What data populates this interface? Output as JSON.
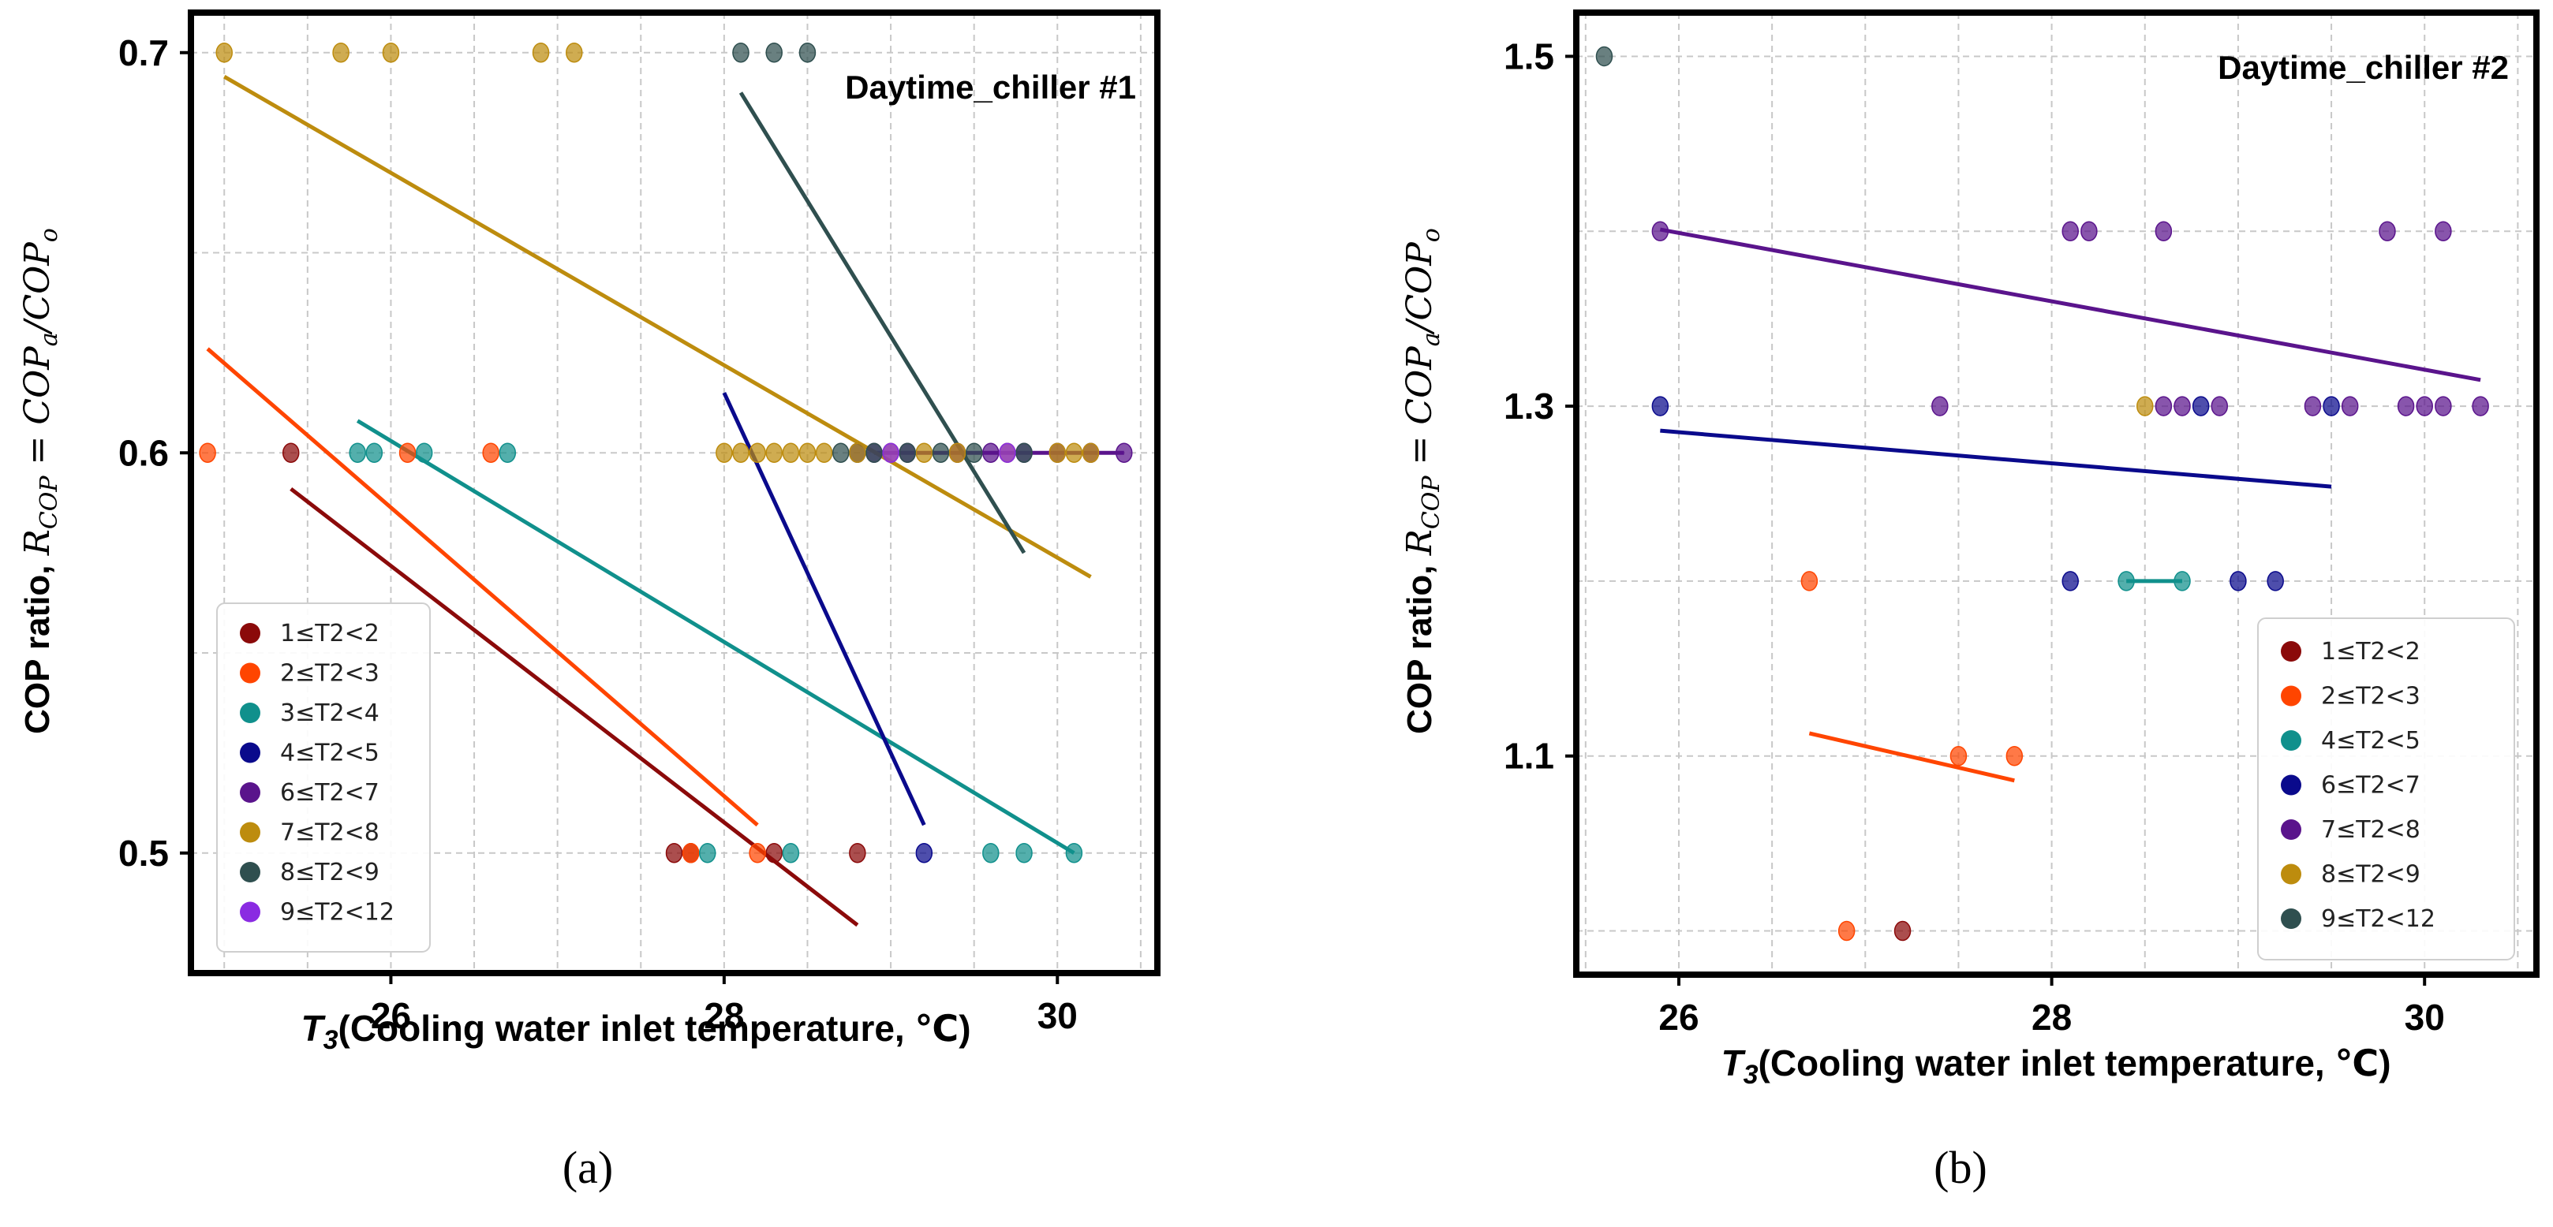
{
  "chart_data": [
    {
      "type": "scatter",
      "panel_label": "(a)",
      "annotation": "Daytime_chiller #1",
      "xlabel_sym": "T",
      "xlabel_sub": "3",
      "xlabel_rest": "(Cooling water inlet temperature, ℃)",
      "ylabel_text": "COP ratio, ",
      "ylabel_math": "R",
      "ylabel_math_sub": "COP",
      "ylabel_eq": " = COP",
      "ylabel_eq_sub": "a",
      "ylabel_slash": "/COP",
      "ylabel_slash_sub": "o",
      "xlim": [
        24.8,
        30.6
      ],
      "ylim": [
        0.47,
        0.71
      ],
      "xticks": [
        26,
        28,
        30
      ],
      "xtick_labels": [
        "26",
        "28",
        "30"
      ],
      "yticks": [
        0.5,
        0.6,
        0.7
      ],
      "ytick_labels": [
        "0.5",
        "0.6",
        "0.7"
      ],
      "xgrid": [
        25,
        25.5,
        26,
        26.5,
        27,
        27.5,
        28,
        28.5,
        29,
        29.5,
        30,
        30.5
      ],
      "ygrid": [
        0.5,
        0.55,
        0.6,
        0.65,
        0.7
      ],
      "grid": true,
      "legend_position": "lower-left",
      "series": [
        {
          "name": "1≤T2<2",
          "color": "#8b0a0a",
          "points": [
            [
              25.4,
              0.6
            ],
            [
              27.7,
              0.5
            ],
            [
              27.8,
              0.5
            ],
            [
              28.3,
              0.5
            ],
            [
              28.8,
              0.5
            ]
          ],
          "trend": [
            [
              25.4,
              0.591
            ],
            [
              28.8,
              0.482
            ]
          ]
        },
        {
          "name": "2≤T2<3",
          "color": "#ff4500",
          "points": [
            [
              24.9,
              0.6
            ],
            [
              26.1,
              0.6
            ],
            [
              26.6,
              0.6
            ],
            [
              27.8,
              0.5
            ],
            [
              28.2,
              0.5
            ]
          ],
          "trend": [
            [
              24.9,
              0.626
            ],
            [
              28.2,
              0.507
            ]
          ]
        },
        {
          "name": "3≤T2<4",
          "color": "#10908c",
          "points": [
            [
              25.8,
              0.6
            ],
            [
              25.9,
              0.6
            ],
            [
              26.2,
              0.6
            ],
            [
              26.7,
              0.6
            ],
            [
              27.9,
              0.5
            ],
            [
              28.4,
              0.5
            ],
            [
              29.6,
              0.5
            ],
            [
              29.8,
              0.5
            ],
            [
              30.1,
              0.5
            ]
          ],
          "trend": [
            [
              25.8,
              0.608
            ],
            [
              30.1,
              0.5
            ]
          ]
        },
        {
          "name": "4≤T2<5",
          "color": "#0a0a8c",
          "points": [
            [
              28.8,
              0.6
            ],
            [
              29.2,
              0.5
            ]
          ],
          "trend": [
            [
              28.0,
              0.615
            ],
            [
              29.2,
              0.507
            ]
          ]
        },
        {
          "name": "6≤T2<7",
          "color": "#5a148c",
          "points": [
            [
              28.9,
              0.6
            ],
            [
              29.1,
              0.6
            ],
            [
              29.4,
              0.6
            ],
            [
              29.6,
              0.6
            ],
            [
              29.8,
              0.6
            ],
            [
              30.0,
              0.6
            ],
            [
              30.2,
              0.6
            ],
            [
              30.4,
              0.6
            ]
          ],
          "trend": [
            [
              28.9,
              0.6
            ],
            [
              30.4,
              0.6
            ]
          ]
        },
        {
          "name": "7≤T2<8",
          "color": "#bd8c0e",
          "points": [
            [
              25.0,
              0.7
            ],
            [
              25.7,
              0.7
            ],
            [
              26.0,
              0.7
            ],
            [
              26.9,
              0.7
            ],
            [
              27.1,
              0.7
            ],
            [
              28.0,
              0.6
            ],
            [
              28.1,
              0.6
            ],
            [
              28.2,
              0.6
            ],
            [
              28.3,
              0.6
            ],
            [
              28.4,
              0.6
            ],
            [
              28.5,
              0.6
            ],
            [
              28.6,
              0.6
            ],
            [
              28.8,
              0.6
            ],
            [
              29.0,
              0.6
            ],
            [
              29.2,
              0.6
            ],
            [
              29.4,
              0.6
            ],
            [
              29.7,
              0.6
            ],
            [
              30.0,
              0.6
            ],
            [
              30.1,
              0.6
            ],
            [
              30.2,
              0.6
            ]
          ],
          "trend": [
            [
              25.0,
              0.694
            ],
            [
              30.2,
              0.569
            ]
          ]
        },
        {
          "name": "8≤T2<9",
          "color": "#2f4f4f",
          "points": [
            [
              28.1,
              0.7
            ],
            [
              28.3,
              0.7
            ],
            [
              28.5,
              0.7
            ],
            [
              28.7,
              0.6
            ],
            [
              28.9,
              0.6
            ],
            [
              29.1,
              0.6
            ],
            [
              29.3,
              0.6
            ],
            [
              29.5,
              0.6
            ],
            [
              29.8,
              0.6
            ]
          ],
          "trend": [
            [
              28.1,
              0.69
            ],
            [
              29.8,
              0.575
            ]
          ]
        },
        {
          "name": "9≤T2<12",
          "color": "#8a2be2",
          "points": [
            [
              29.0,
              0.6
            ],
            [
              29.7,
              0.6
            ]
          ],
          "trend": []
        }
      ]
    },
    {
      "type": "scatter",
      "panel_label": "(b)",
      "annotation": "Daytime_chiller #2",
      "xlabel_sym": "T",
      "xlabel_sub": "3",
      "xlabel_rest": "(Cooling water inlet temperature, ℃)",
      "ylabel_text": "COP ratio, ",
      "ylabel_math": "R",
      "ylabel_math_sub": "COP",
      "ylabel_eq": " = COP",
      "ylabel_eq_sub": "a",
      "ylabel_slash": "/COP",
      "ylabel_slash_sub": "o",
      "xlim": [
        25.45,
        30.6
      ],
      "ylim": [
        0.975,
        1.525
      ],
      "xticks": [
        26,
        28,
        30
      ],
      "xtick_labels": [
        "26",
        "28",
        "30"
      ],
      "yticks": [
        1.1,
        1.3,
        1.5
      ],
      "ytick_labels": [
        "1.1",
        "1.3",
        "1.5"
      ],
      "xgrid": [
        25.5,
        26,
        26.5,
        27,
        27.5,
        28,
        28.5,
        29,
        29.5,
        30,
        30.5
      ],
      "ygrid": [
        1.0,
        1.1,
        1.2,
        1.3,
        1.4,
        1.5
      ],
      "grid": true,
      "legend_position": "lower-right",
      "series": [
        {
          "name": "1≤T2<2",
          "color": "#8b0a0a",
          "points": [
            [
              27.2,
              1.0
            ]
          ],
          "trend": []
        },
        {
          "name": "2≤T2<3",
          "color": "#ff4500",
          "points": [
            [
              26.7,
              1.2
            ],
            [
              26.9,
              1.0
            ],
            [
              27.5,
              1.1
            ],
            [
              27.8,
              1.1
            ]
          ],
          "trend": [
            [
              26.7,
              1.113
            ],
            [
              27.8,
              1.086
            ]
          ]
        },
        {
          "name": "4≤T2<5",
          "color": "#10908c",
          "points": [
            [
              28.4,
              1.2
            ],
            [
              28.7,
              1.2
            ]
          ],
          "trend": [
            [
              28.4,
              1.2
            ],
            [
              28.7,
              1.2
            ]
          ]
        },
        {
          "name": "6≤T2<7",
          "color": "#0a0a8c",
          "points": [
            [
              25.9,
              1.3
            ],
            [
              28.1,
              1.2
            ],
            [
              28.8,
              1.3
            ],
            [
              29.0,
              1.2
            ],
            [
              29.2,
              1.2
            ],
            [
              29.5,
              1.3
            ]
          ],
          "trend": [
            [
              25.9,
              1.286
            ],
            [
              29.5,
              1.254
            ]
          ]
        },
        {
          "name": "7≤T2<8",
          "color": "#5a148c",
          "points": [
            [
              25.9,
              1.4
            ],
            [
              27.4,
              1.3
            ],
            [
              28.1,
              1.4
            ],
            [
              28.2,
              1.4
            ],
            [
              28.6,
              1.4
            ],
            [
              28.6,
              1.3
            ],
            [
              28.7,
              1.3
            ],
            [
              28.9,
              1.3
            ],
            [
              29.4,
              1.3
            ],
            [
              29.6,
              1.3
            ],
            [
              29.8,
              1.4
            ],
            [
              29.9,
              1.3
            ],
            [
              30.0,
              1.3
            ],
            [
              30.1,
              1.3
            ],
            [
              30.1,
              1.4
            ],
            [
              30.3,
              1.3
            ]
          ],
          "trend": [
            [
              25.9,
              1.401
            ],
            [
              30.3,
              1.315
            ]
          ]
        },
        {
          "name": "8≤T2<9",
          "color": "#bd8c0e",
          "points": [
            [
              28.5,
              1.3
            ]
          ],
          "trend": []
        },
        {
          "name": "9≤T2<12",
          "color": "#2f4f4f",
          "points": [
            [
              25.6,
              1.5
            ]
          ],
          "trend": []
        }
      ]
    }
  ]
}
